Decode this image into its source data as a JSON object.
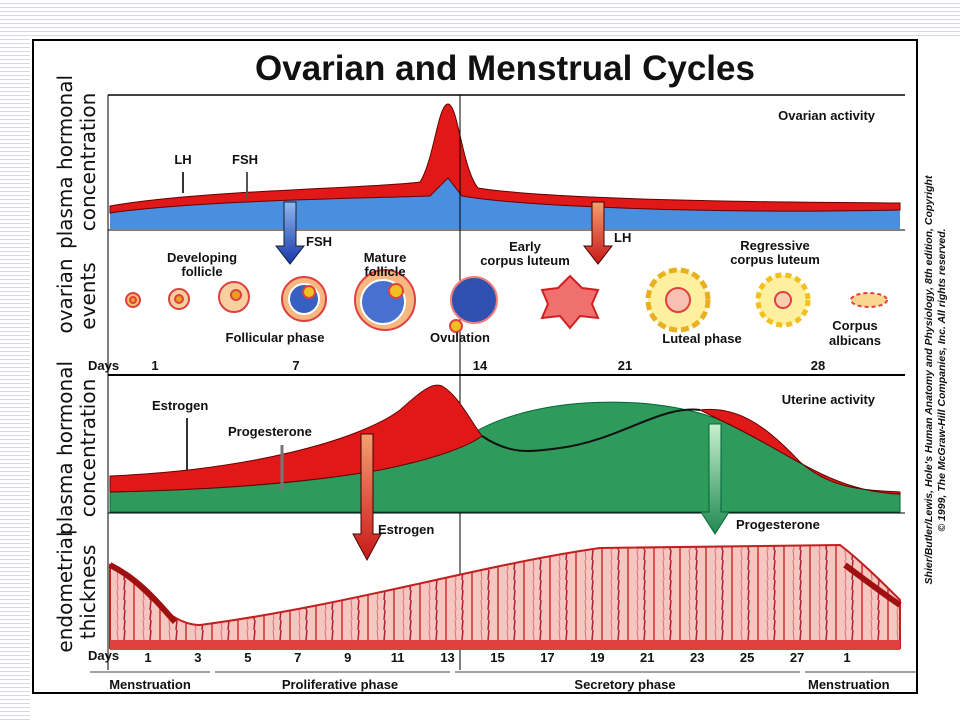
{
  "title": "Ovarian and Menstrual Cycles",
  "axis_labels": [
    [
      "plasma hormonal",
      "concentration"
    ],
    [
      "ovarian",
      "events"
    ],
    [
      "plasma hormonal",
      "concentration"
    ],
    [
      "endometrial",
      "thickness"
    ]
  ],
  "ovarian_activity": {
    "label": "Ovarian activity",
    "hormones": [
      "LH",
      "FSH"
    ],
    "arrows": [
      "FSH",
      "LH"
    ]
  },
  "ovarian_events": {
    "stages": [
      [
        "Developing",
        "follicle"
      ],
      [
        "Mature",
        "follicle"
      ],
      [
        "Early",
        "corpus luteum"
      ],
      [
        "Regressive",
        "corpus luteum"
      ],
      [
        "Corpus",
        "albicans"
      ]
    ],
    "phases": [
      "Follicular phase",
      "Ovulation",
      "Luteal phase"
    ]
  },
  "cycle_days": {
    "label": "Days",
    "days": [
      "1",
      "7",
      "14",
      "21",
      "28"
    ]
  },
  "uterine_activity": {
    "label": "Uterine activity",
    "hormones": [
      "Estrogen",
      "Progesterone"
    ],
    "arrows": [
      "Estrogen",
      "Progesterone"
    ]
  },
  "endometrium_days": {
    "label": "Days",
    "days": [
      "1",
      "3",
      "5",
      "7",
      "9",
      "11",
      "13",
      "15",
      "17",
      "19",
      "21",
      "23",
      "25",
      "27",
      "1"
    ]
  },
  "phases": [
    "Menstruation",
    "Proliferative phase",
    "Secretory phase",
    "Menstruation"
  ],
  "credit": [
    "Shier/Butler/Lewis, Hole's Human Anatomy and Physiology, 8th edition, Copyright",
    "© 1999, The McGraw-Hill Companies, Inc. All rights reserved."
  ]
}
